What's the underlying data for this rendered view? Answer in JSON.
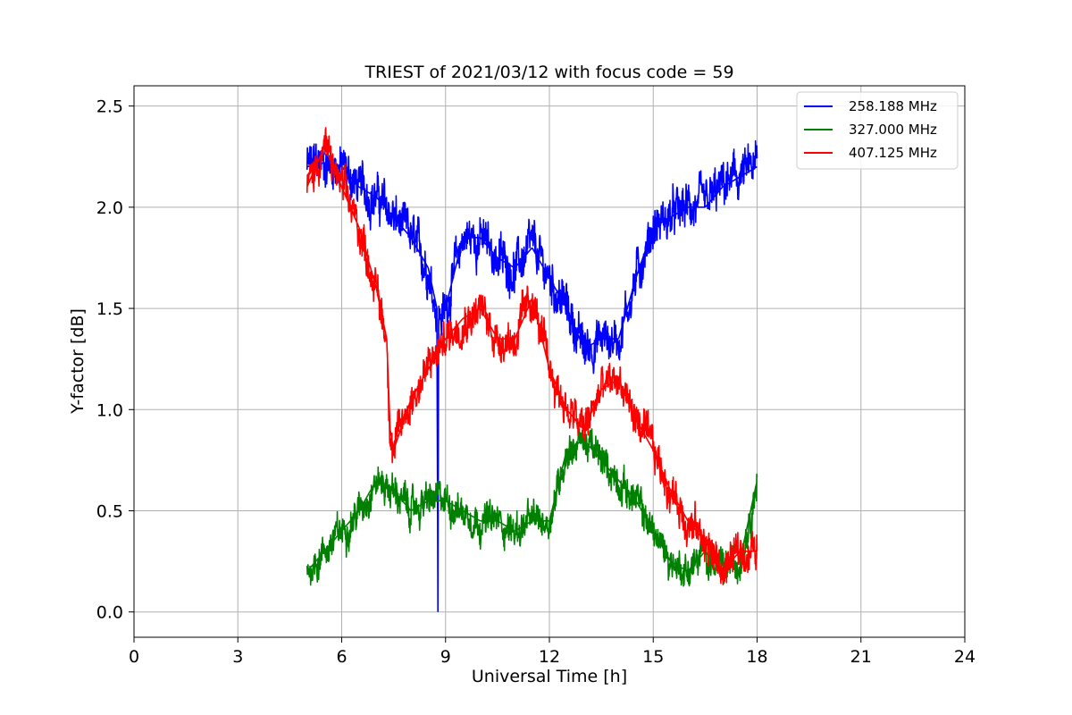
{
  "chart_data": {
    "type": "line",
    "title": "TRIEST of 2021/03/12 with focus code = 59",
    "xlabel": "Universal Time [h]",
    "ylabel": "Y-factor [dB]",
    "xlim": [
      0,
      24
    ],
    "ylim": [
      -0.125,
      2.6
    ],
    "xticks": [
      0,
      3,
      6,
      9,
      12,
      15,
      18,
      21,
      24
    ],
    "yticks": [
      0.0,
      0.5,
      1.0,
      1.5,
      2.0,
      2.5
    ],
    "xtick_labels": [
      "0",
      "3",
      "6",
      "9",
      "12",
      "15",
      "18",
      "21",
      "24"
    ],
    "ytick_labels": [
      "0.0",
      "0.5",
      "1.0",
      "1.5",
      "2.0",
      "2.5"
    ],
    "grid": true,
    "legend_position": "top-right",
    "series": [
      {
        "name": "258.188 MHz",
        "color": "#0000ff",
        "x": [
          5.0,
          5.5,
          6.0,
          6.5,
          7.0,
          7.5,
          8.0,
          8.5,
          8.75,
          8.78,
          8.8,
          9.0,
          9.5,
          10.0,
          10.5,
          11.0,
          11.5,
          12.0,
          12.5,
          13.0,
          13.5,
          14.0,
          14.5,
          15.0,
          15.5,
          16.0,
          16.5,
          17.0,
          17.5,
          18.0
        ],
        "y": [
          2.2,
          2.22,
          2.2,
          2.1,
          2.05,
          1.95,
          1.85,
          1.7,
          1.5,
          0.0,
          1.45,
          1.5,
          1.85,
          1.85,
          1.75,
          1.7,
          1.8,
          1.65,
          1.5,
          1.3,
          1.35,
          1.35,
          1.65,
          1.9,
          1.95,
          2.0,
          2.0,
          2.1,
          2.15,
          2.2
        ],
        "noise": 0.09
      },
      {
        "name": "327.000 MHz",
        "color": "#008000",
        "x": [
          5.0,
          5.5,
          6.0,
          6.5,
          7.0,
          7.5,
          8.0,
          8.5,
          9.0,
          9.5,
          10.0,
          10.5,
          11.0,
          11.5,
          12.0,
          12.5,
          13.0,
          13.5,
          14.0,
          14.5,
          15.0,
          15.5,
          16.0,
          16.5,
          17.0,
          17.5,
          18.0
        ],
        "y": [
          0.2,
          0.3,
          0.4,
          0.5,
          0.65,
          0.6,
          0.5,
          0.55,
          0.55,
          0.5,
          0.45,
          0.45,
          0.4,
          0.45,
          0.45,
          0.8,
          0.85,
          0.75,
          0.65,
          0.55,
          0.4,
          0.25,
          0.2,
          0.3,
          0.2,
          0.25,
          0.65
        ],
        "noise": 0.07
      },
      {
        "name": "407.125 MHz",
        "color": "#ff0000",
        "x": [
          5.0,
          5.5,
          6.0,
          6.5,
          7.0,
          7.3,
          7.4,
          7.5,
          8.0,
          8.5,
          9.0,
          9.5,
          10.0,
          10.5,
          11.0,
          11.5,
          12.0,
          12.5,
          13.0,
          13.5,
          14.0,
          14.5,
          15.0,
          15.5,
          16.0,
          16.5,
          17.0,
          17.5,
          18.0
        ],
        "y": [
          2.1,
          2.3,
          2.1,
          1.9,
          1.6,
          1.35,
          0.9,
          0.8,
          1.05,
          1.2,
          1.35,
          1.45,
          1.5,
          1.35,
          1.35,
          1.55,
          1.2,
          1.0,
          0.9,
          1.1,
          1.15,
          0.95,
          0.8,
          0.6,
          0.45,
          0.35,
          0.2,
          0.3,
          0.3
        ],
        "noise": 0.08
      }
    ]
  }
}
